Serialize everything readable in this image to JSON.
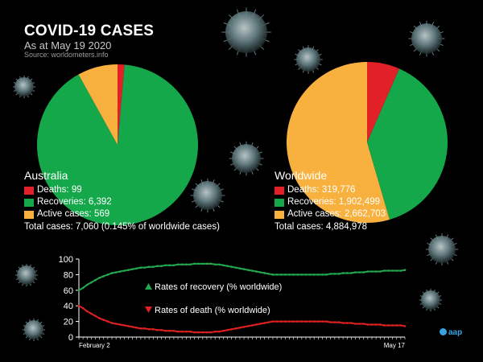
{
  "header": {
    "title": "COVID-19 CASES",
    "subtitle": "As at May 19 2020",
    "source": "Source: worldometers.info"
  },
  "colors": {
    "deaths": "#e12027",
    "recoveries": "#14a84a",
    "active": "#f8b13e",
    "recovery_line": "#23a84e",
    "death_line": "#e02020",
    "axis": "#ffffff"
  },
  "australia": {
    "heading": "Australia",
    "deaths_label": "Deaths: 99",
    "recoveries_label": "Recoveries: 6,392",
    "active_label": "Active cases: 569",
    "total_label": "Total cases: 7,060 (0.145% of worldwide cases)"
  },
  "worldwide": {
    "heading": "Worldwide",
    "deaths_label": "Deaths: 319,776",
    "recoveries_label": "Recoveries: 1,902,499",
    "active_label": "Active cases: 2,662,703",
    "total_label": "Total cases: 4,884,978"
  },
  "logo": {
    "text": "aap"
  },
  "chart_data": [
    {
      "type": "pie",
      "labels": [
        "Deaths",
        "Recoveries",
        "Active cases"
      ],
      "values": [
        99,
        6392,
        569
      ]
    },
    {
      "type": "pie",
      "labels": [
        "Deaths",
        "Recoveries",
        "Active cases"
      ],
      "values": [
        319776,
        1902499,
        2662703
      ]
    },
    {
      "type": "line",
      "x_tick_labels": [
        "February 2",
        "May 17"
      ],
      "y_ticks": [
        0,
        20,
        40,
        60,
        80,
        100
      ],
      "ylim": [
        0,
        100
      ],
      "series": [
        {
          "name": "Rates of recovery (% worldwide)",
          "values": [
            60,
            63,
            67,
            70,
            73,
            76,
            78,
            80,
            82,
            83,
            84,
            85,
            86,
            87,
            88,
            89,
            89,
            90,
            90,
            91,
            91,
            92,
            92,
            92,
            93,
            93,
            93,
            93,
            94,
            94,
            94,
            94,
            94,
            93,
            93,
            92,
            91,
            90,
            89,
            88,
            87,
            86,
            85,
            84,
            83,
            82,
            81,
            80,
            80,
            80,
            80,
            80,
            80,
            80,
            80,
            80,
            80,
            80,
            80,
            80,
            80,
            81,
            81,
            81,
            82,
            82,
            82,
            83,
            83,
            83,
            84,
            84,
            84,
            84,
            85,
            85,
            85,
            85,
            85,
            86
          ]
        },
        {
          "name": "Rates of death (% worldwide)",
          "values": [
            40,
            37,
            33,
            30,
            27,
            24,
            22,
            20,
            18,
            17,
            16,
            15,
            14,
            13,
            12,
            11,
            11,
            10,
            10,
            9,
            9,
            8,
            8,
            8,
            7,
            7,
            7,
            7,
            6,
            6,
            6,
            6,
            6,
            7,
            7,
            8,
            9,
            10,
            11,
            12,
            13,
            14,
            15,
            16,
            17,
            18,
            19,
            20,
            20,
            20,
            20,
            20,
            20,
            20,
            20,
            20,
            20,
            20,
            20,
            20,
            20,
            19,
            19,
            19,
            18,
            18,
            18,
            17,
            17,
            17,
            16,
            16,
            16,
            16,
            15,
            15,
            15,
            15,
            15,
            14
          ]
        }
      ]
    }
  ]
}
